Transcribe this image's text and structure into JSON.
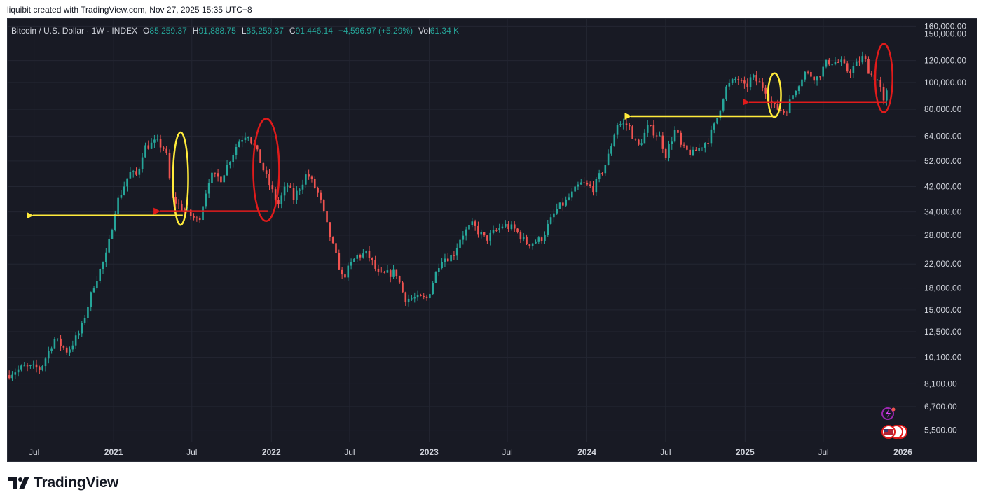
{
  "header": {
    "caption": "liquibit created with TradingView.com, Nov 27, 2025 15:35 UTC+8"
  },
  "legend": {
    "symbol": "Bitcoin / U.S. Dollar · 1W · INDEX",
    "o_label": "O",
    "o_value": "85,259.37",
    "h_label": "H",
    "h_value": "91,888.75",
    "l_label": "L",
    "l_value": "85,259.37",
    "c_label": "C",
    "c_value": "91,446.14",
    "change": "+4,596.97 (+5.29%)",
    "vol_label": "Vol",
    "vol_value": "61.34 K"
  },
  "brand": {
    "name": "TradingView"
  },
  "colors": {
    "background": "#181a24",
    "grid": "#232632",
    "up": "#26a69a",
    "down": "#ef5350",
    "annotation_yellow": "#ffeb3b",
    "annotation_red": "#e01b1b",
    "axis_text": "#d1d4dc"
  },
  "chart_data": {
    "type": "candlestick",
    "title": "Bitcoin / U.S. Dollar",
    "interval": "1W",
    "y_scale": "log",
    "ylim": [
      5000,
      170000
    ],
    "y_ticks": [
      {
        "value": 160000,
        "label": "160,000.00"
      },
      {
        "value": 150000,
        "label": "150,000.00"
      },
      {
        "value": 120000,
        "label": "120,000.00"
      },
      {
        "value": 100000,
        "label": "100,000.00"
      },
      {
        "value": 80000,
        "label": "80,000.00"
      },
      {
        "value": 64000,
        "label": "64,000.00"
      },
      {
        "value": 52000,
        "label": "52,000.00"
      },
      {
        "value": 42000,
        "label": "42,000.00"
      },
      {
        "value": 34000,
        "label": "34,000.00"
      },
      {
        "value": 28000,
        "label": "28,000.00"
      },
      {
        "value": 22000,
        "label": "22,000.00"
      },
      {
        "value": 18000,
        "label": "18,000.00"
      },
      {
        "value": 15000,
        "label": "15,000.00"
      },
      {
        "value": 12500,
        "label": "12,500.00"
      },
      {
        "value": 10100,
        "label": "10,100.00"
      },
      {
        "value": 8100,
        "label": "8,100.00"
      },
      {
        "value": 6700,
        "label": "6,700.00"
      },
      {
        "value": 5500,
        "label": "5,500.00"
      }
    ],
    "xlim": [
      "2020-05-01",
      "2026-01-31"
    ],
    "x_ticks": [
      {
        "date": "2020-07-01",
        "label": "Jul",
        "bold": false
      },
      {
        "date": "2021-01-01",
        "label": "2021",
        "bold": true
      },
      {
        "date": "2021-07-01",
        "label": "Jul",
        "bold": false
      },
      {
        "date": "2022-01-01",
        "label": "2022",
        "bold": true
      },
      {
        "date": "2022-07-01",
        "label": "Jul",
        "bold": false
      },
      {
        "date": "2023-01-01",
        "label": "2023",
        "bold": true
      },
      {
        "date": "2023-07-01",
        "label": "Jul",
        "bold": false
      },
      {
        "date": "2024-01-01",
        "label": "2024",
        "bold": true
      },
      {
        "date": "2024-07-01",
        "label": "Jul",
        "bold": false
      },
      {
        "date": "2025-01-01",
        "label": "2025",
        "bold": true
      },
      {
        "date": "2025-07-01",
        "label": "Jul",
        "bold": false
      },
      {
        "date": "2026-01-01",
        "label": "2026",
        "bold": true
      }
    ],
    "price_path": [
      [
        "2020-05-01",
        8700
      ],
      [
        "2020-06-10",
        9300
      ],
      [
        "2020-07-20",
        9200
      ],
      [
        "2020-08-20",
        11800
      ],
      [
        "2020-09-20",
        10600
      ],
      [
        "2020-10-20",
        12600
      ],
      [
        "2020-11-20",
        18500
      ],
      [
        "2020-12-20",
        24000
      ],
      [
        "2021-01-10",
        36000
      ],
      [
        "2021-02-10",
        47000
      ],
      [
        "2021-02-28",
        46000
      ],
      [
        "2021-03-15",
        58000
      ],
      [
        "2021-04-14",
        61000
      ],
      [
        "2021-05-05",
        57000
      ],
      [
        "2021-05-20",
        38000
      ],
      [
        "2021-06-20",
        34000
      ],
      [
        "2021-07-20",
        31500
      ],
      [
        "2021-08-15",
        46000
      ],
      [
        "2021-09-10",
        45000
      ],
      [
        "2021-10-20",
        61000
      ],
      [
        "2021-11-10",
        66000
      ],
      [
        "2021-11-30",
        57000
      ],
      [
        "2021-12-20",
        47000
      ],
      [
        "2022-01-20",
        36000
      ],
      [
        "2022-02-10",
        43000
      ],
      [
        "2022-02-25",
        38000
      ],
      [
        "2022-03-28",
        47000
      ],
      [
        "2022-04-25",
        39000
      ],
      [
        "2022-05-15",
        29500
      ],
      [
        "2022-06-18",
        19500
      ],
      [
        "2022-07-20",
        23500
      ],
      [
        "2022-08-15",
        24000
      ],
      [
        "2022-09-10",
        20000
      ],
      [
        "2022-10-20",
        20500
      ],
      [
        "2022-11-09",
        16500
      ],
      [
        "2022-12-31",
        16500
      ],
      [
        "2023-01-31",
        23000
      ],
      [
        "2023-02-28",
        23500
      ],
      [
        "2023-03-20",
        28000
      ],
      [
        "2023-04-15",
        30500
      ],
      [
        "2023-05-15",
        27000
      ],
      [
        "2023-06-25",
        30500
      ],
      [
        "2023-07-20",
        29500
      ],
      [
        "2023-08-20",
        26000
      ],
      [
        "2023-09-20",
        27000
      ],
      [
        "2023-10-25",
        34500
      ],
      [
        "2023-11-20",
        37500
      ],
      [
        "2023-12-20",
        43000
      ],
      [
        "2024-01-20",
        41500
      ],
      [
        "2024-02-20",
        52000
      ],
      [
        "2024-03-14",
        71000
      ],
      [
        "2024-04-10",
        70000
      ],
      [
        "2024-05-01",
        58000
      ],
      [
        "2024-05-25",
        69000
      ],
      [
        "2024-06-20",
        64000
      ],
      [
        "2024-07-05",
        55000
      ],
      [
        "2024-07-28",
        68000
      ],
      [
        "2024-08-10",
        58000
      ],
      [
        "2024-09-05",
        55000
      ],
      [
        "2024-10-10",
        62000
      ],
      [
        "2024-10-28",
        71000
      ],
      [
        "2024-11-20",
        95000
      ],
      [
        "2024-12-17",
        104000
      ],
      [
        "2025-01-05",
        95000
      ],
      [
        "2025-01-20",
        105000
      ],
      [
        "2025-02-20",
        95000
      ],
      [
        "2025-03-10",
        82000
      ],
      [
        "2025-04-08",
        78000
      ],
      [
        "2025-05-01",
        95000
      ],
      [
        "2025-05-22",
        109000
      ],
      [
        "2025-06-20",
        104000
      ],
      [
        "2025-07-14",
        119000
      ],
      [
        "2025-08-14",
        118000
      ],
      [
        "2025-09-01",
        109000
      ],
      [
        "2025-10-06",
        124000
      ],
      [
        "2025-10-20",
        108000
      ],
      [
        "2025-11-10",
        101000
      ],
      [
        "2025-11-21",
        84000
      ],
      [
        "2025-11-27",
        91446
      ]
    ],
    "annotations": [
      {
        "kind": "ellipse",
        "color": "yellow",
        "date": "2021-06-05",
        "price": 42000,
        "span_days": 35,
        "price_top": 66000,
        "price_bottom": 30500
      },
      {
        "kind": "ellipse",
        "color": "red",
        "date": "2021-12-20",
        "price": 46000,
        "span_days": 60,
        "price_top": 74000,
        "price_bottom": 31500
      },
      {
        "kind": "arrow",
        "color": "yellow",
        "from_date": "2021-06-10",
        "to_date": "2020-06-15",
        "price": 33000
      },
      {
        "kind": "arrow",
        "color": "red",
        "from_date": "2021-12-25",
        "to_date": "2021-04-05",
        "price": 34200
      },
      {
        "kind": "ellipse",
        "color": "yellow",
        "date": "2025-03-10",
        "price": 90000,
        "span_days": 30,
        "price_top": 108000,
        "price_bottom": 75000
      },
      {
        "kind": "ellipse",
        "color": "red",
        "date": "2025-11-18",
        "price": 105000,
        "span_days": 40,
        "price_top": 138000,
        "price_bottom": 78000
      },
      {
        "kind": "arrow",
        "color": "yellow",
        "from_date": "2025-03-15",
        "to_date": "2024-03-30",
        "price": 75500
      },
      {
        "kind": "arrow",
        "color": "red",
        "from_date": "2025-11-25",
        "to_date": "2024-12-28",
        "price": 85000
      }
    ]
  }
}
